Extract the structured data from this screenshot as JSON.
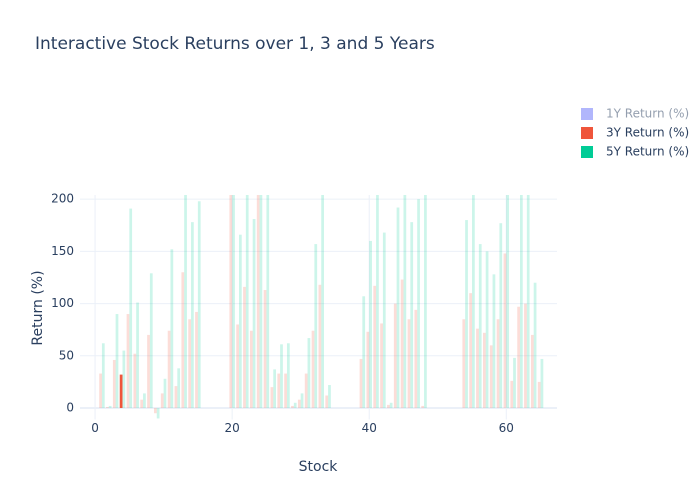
{
  "chart_data": {
    "type": "bar",
    "title": "Interactive Stock Returns over 1, 3 and 5 Years",
    "x_label": "Stock",
    "y_label": "Return (%)",
    "x": [
      0,
      1,
      2,
      3,
      4,
      5,
      6,
      7,
      8,
      9,
      10,
      11,
      12,
      13,
      14,
      15,
      20,
      21,
      22,
      23,
      24,
      25,
      26,
      27,
      28,
      29,
      30,
      31,
      32,
      33,
      34,
      39,
      40,
      41,
      42,
      43,
      44,
      45,
      46,
      47,
      48,
      54,
      55,
      56,
      57,
      58,
      59,
      60,
      61,
      62,
      63,
      64,
      65
    ],
    "series": [
      {
        "name": "1Y Return (%)",
        "color": "#636efa",
        "visible": "legendonly"
      },
      {
        "name": "3Y Return (%)",
        "color": "#EF553B",
        "values": [
          0,
          33,
          1,
          46,
          32,
          90,
          52,
          8,
          70,
          -5,
          14,
          74,
          21,
          130,
          85,
          92,
          204,
          80,
          116,
          74,
          204,
          113,
          20,
          33,
          33,
          2,
          8,
          33,
          74,
          118,
          12,
          47,
          73,
          117,
          81,
          3,
          100,
          123,
          85,
          94,
          2,
          85,
          110,
          76,
          72,
          60,
          85,
          148,
          26,
          97,
          100,
          70,
          25
        ]
      },
      {
        "name": "5Y Return (%)",
        "color": "#00cc96",
        "values": [
          0,
          62,
          2,
          90,
          55,
          191,
          101,
          14,
          129,
          -10,
          28,
          152,
          38,
          204,
          178,
          198,
          204,
          166,
          204,
          181,
          204,
          204,
          37,
          61,
          62,
          5,
          14,
          67,
          157,
          204,
          22,
          107,
          160,
          204,
          168,
          5,
          192,
          204,
          178,
          200,
          204,
          180,
          204,
          157,
          150,
          128,
          177,
          204,
          48,
          204,
          204,
          120,
          47
        ]
      }
    ],
    "highlight": {
      "series": 1,
      "index": 4
    },
    "xlim": [
      -2.2,
      67.4
    ],
    "ylim": [
      -11,
      204
    ],
    "xticks": [
      0,
      20,
      40,
      60
    ],
    "yticks": [
      0,
      50,
      100,
      150,
      200
    ],
    "grid": true
  }
}
